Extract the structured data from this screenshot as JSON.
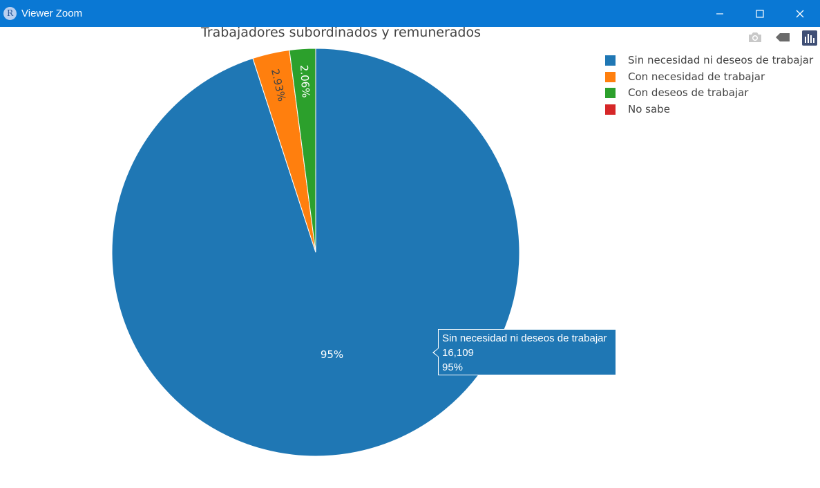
{
  "window": {
    "title": "Viewer Zoom",
    "app_icon": "R",
    "controls": [
      "minimize-icon",
      "maximize-icon",
      "close-icon"
    ]
  },
  "modebar": {
    "icons": [
      "camera-icon",
      "tag-icon",
      "plotly-logo-icon"
    ]
  },
  "chart_data": {
    "type": "pie",
    "title": "Trabajadores subordinados y remunerados",
    "labels": [
      "Sin necesidad ni deseos de trabajar",
      "Con necesidad de trabajar",
      "Con deseos de trabajar",
      "No sabe"
    ],
    "values": [
      16109,
      497,
      349,
      1
    ],
    "percent_labels": [
      "95%",
      "2.93%",
      "2.06%",
      ""
    ],
    "colors": [
      "#1f77b4",
      "#ff7f0e",
      "#2ca02c",
      "#d62728"
    ],
    "legend_placement": "top-right",
    "direction": "clockwise",
    "start": "top"
  },
  "tooltip": {
    "label": "Sin necesidad ni deseos de trabajar",
    "value": "16,109",
    "percent": "95%"
  }
}
